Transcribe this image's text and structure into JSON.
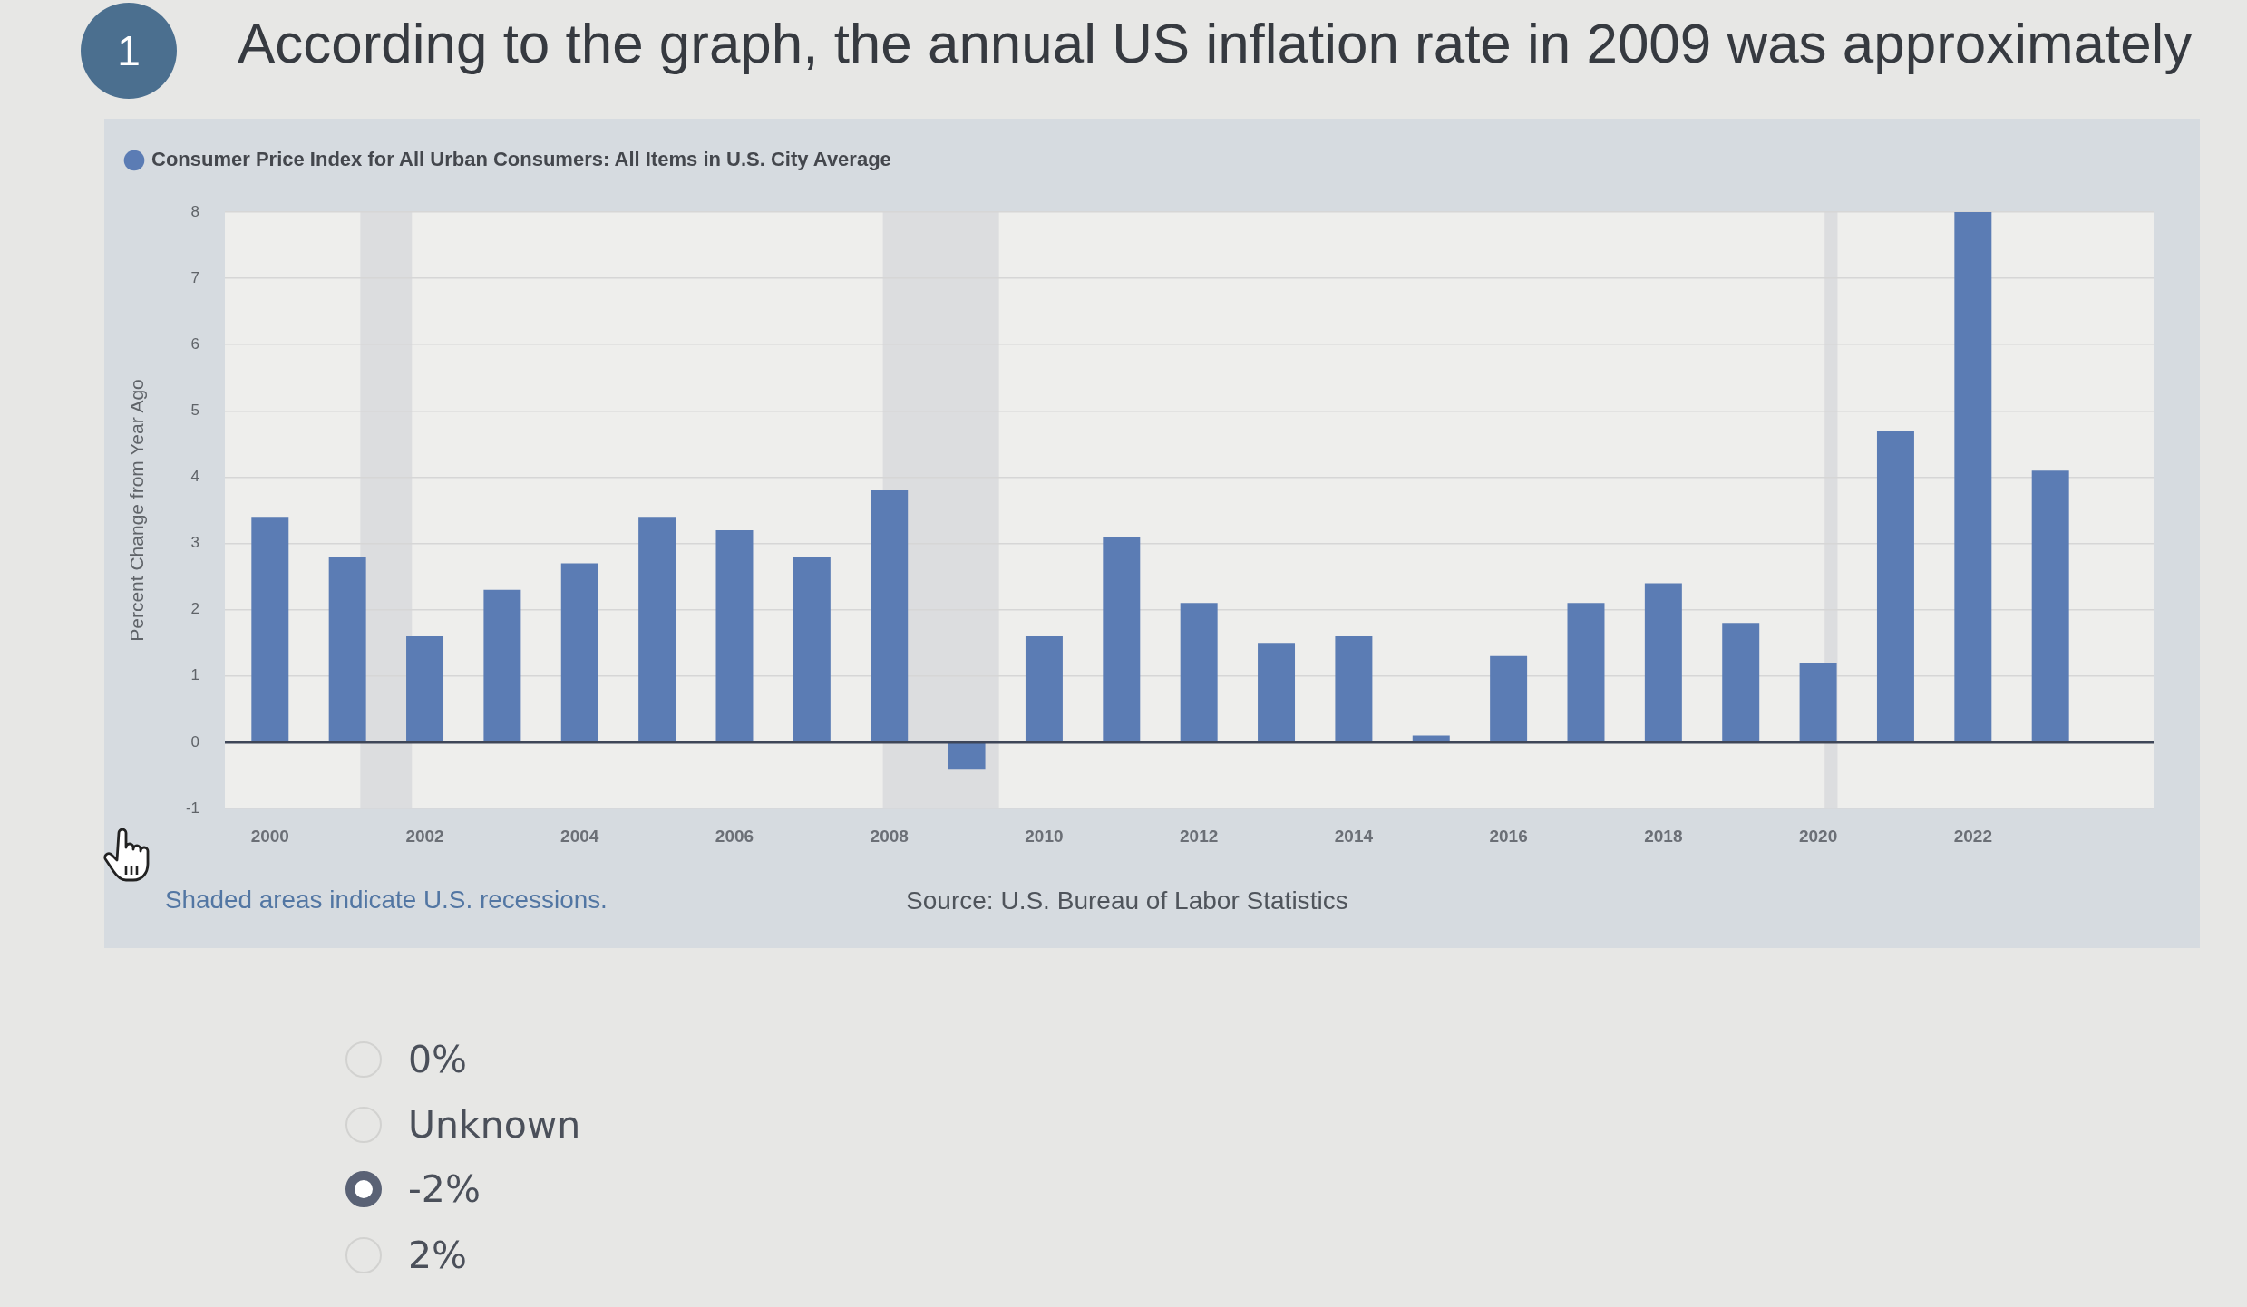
{
  "chart_data": {
    "type": "bar",
    "title": "According to the graph, the annual US inflation rate in 2009 was approximately",
    "ylabel": "Percent Change from Year Ago",
    "x": [
      "2000",
      "2001",
      "2002",
      "2003",
      "2004",
      "2005",
      "2006",
      "2007",
      "2008",
      "2009",
      "2010",
      "2011",
      "2012",
      "2013",
      "2014",
      "2015",
      "2016",
      "2017",
      "2018",
      "2019",
      "2020",
      "2021",
      "2022",
      "2023"
    ],
    "series": [
      {
        "name": "Consumer Price Index for All Urban Consumers: All Items in U.S. City Average",
        "color": "#5b7cb4",
        "values": [
          3.4,
          2.8,
          1.6,
          2.3,
          2.7,
          3.4,
          3.2,
          2.8,
          3.8,
          -0.4,
          1.6,
          3.1,
          2.1,
          1.5,
          1.6,
          0.1,
          1.3,
          2.1,
          2.4,
          1.8,
          1.2,
          4.7,
          8.0,
          4.1
        ]
      }
    ],
    "xlim": [
      "1999-06",
      "2024-05"
    ],
    "xticks": [
      "2000",
      "2002",
      "2004",
      "2006",
      "2008",
      "2010",
      "2012",
      "2014",
      "2016",
      "2018",
      "2020",
      "2022"
    ],
    "ylim": [
      -1,
      8
    ],
    "yticks": [
      -1,
      0,
      1,
      2,
      3,
      4,
      5,
      6,
      7,
      8
    ],
    "bands": [
      {
        "axis": "x",
        "from": "2001-03",
        "to": "2001-11",
        "color": "#dcdddf"
      },
      {
        "axis": "x",
        "from": "2007-12",
        "to": "2009-06",
        "color": "#dcdddf"
      },
      {
        "axis": "x",
        "from": "2020-02",
        "to": "2020-04",
        "color": "#dcdddf"
      }
    ],
    "ref_lines": [
      {
        "axis": "y",
        "value": 0,
        "color": "#3e4658"
      }
    ],
    "grid": "y",
    "legend": "top left",
    "annotations": [
      "1",
      "0%",
      "Unknown",
      "-2%",
      "2%",
      "Shaded areas indicate U.S. recessions.",
      "Source: U.S. Bureau of Labor Statistics"
    ]
  }
}
